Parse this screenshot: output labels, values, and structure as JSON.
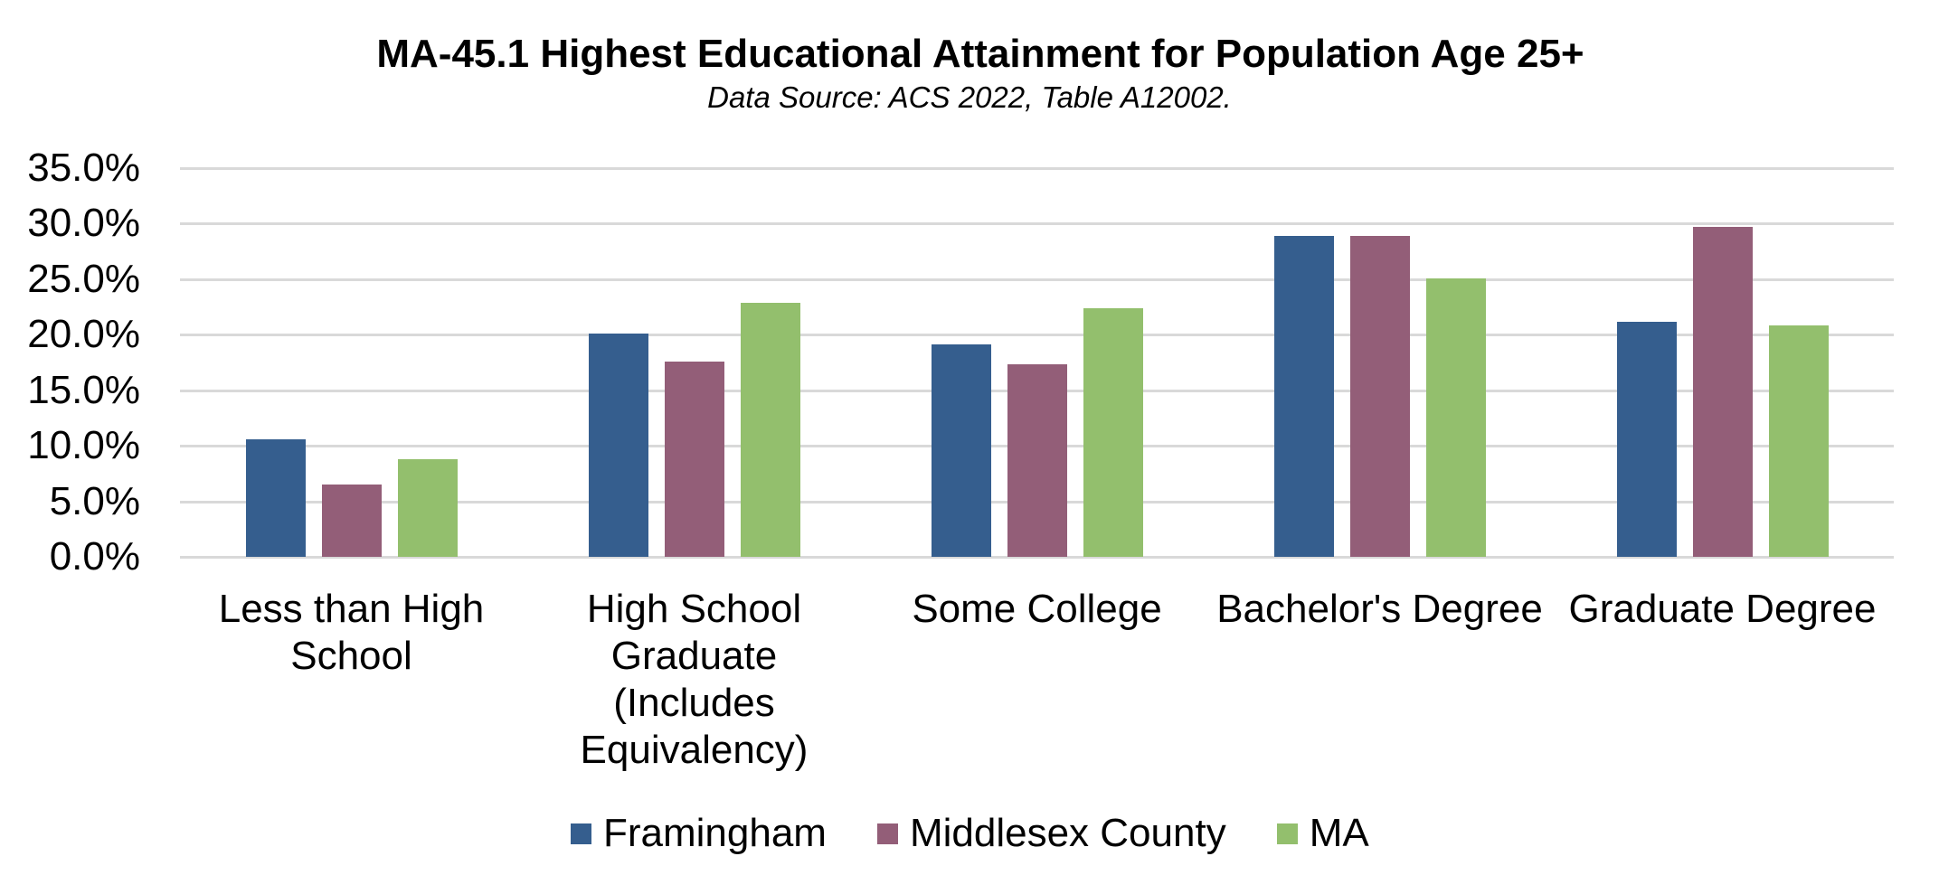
{
  "chart_data": {
    "type": "bar",
    "title": "MA-45.1 Highest Educational Attainment for Population Age 25+",
    "subtitle": "Data Source: ACS 2022, Table A12002.",
    "xlabel": "",
    "ylabel": "",
    "ylim": [
      0,
      35
    ],
    "yticks": [
      "0.0%",
      "5.0%",
      "10.0%",
      "15.0%",
      "20.0%",
      "25.0%",
      "30.0%",
      "35.0%"
    ],
    "grid": true,
    "legend_position": "bottom",
    "categories": [
      "Less than High School",
      "High School Graduate (Includes Equivalency)",
      "Some College",
      "Bachelor's Degree",
      "Graduate Degree"
    ],
    "series": [
      {
        "name": "Framingham",
        "color": "#355E8E",
        "values": [
          10.6,
          20.1,
          19.1,
          28.9,
          21.2
        ]
      },
      {
        "name": "Middlesex County",
        "color": "#935E78",
        "values": [
          6.5,
          17.6,
          17.3,
          28.9,
          29.7
        ]
      },
      {
        "name": "MA",
        "color": "#93BF6D",
        "values": [
          8.8,
          22.9,
          22.4,
          25.1,
          20.8
        ]
      }
    ]
  },
  "header": {
    "title": "MA-45.1 Highest Educational Attainment for Population Age 25+",
    "subtitle": "Data Source: ACS 2022, Table A12002."
  },
  "axis": {
    "yticks": [
      "35.0%",
      "30.0%",
      "25.0%",
      "20.0%",
      "15.0%",
      "10.0%",
      "5.0%",
      "0.0%"
    ],
    "xlabels": [
      [
        "Less than High",
        "School"
      ],
      [
        "High School",
        "Graduate",
        "(Includes",
        "Equivalency)"
      ],
      [
        "Some College"
      ],
      [
        "Bachelor's Degree"
      ],
      [
        "Graduate Degree"
      ]
    ]
  },
  "legend": {
    "items": [
      {
        "label": "Framingham",
        "color": "#355E8E"
      },
      {
        "label": "Middlesex County",
        "color": "#935E78"
      },
      {
        "label": "MA",
        "color": "#93BF6D"
      }
    ]
  },
  "colors": {
    "gridline": "#d9d9d9",
    "text": "#000000",
    "background": "#ffffff"
  }
}
